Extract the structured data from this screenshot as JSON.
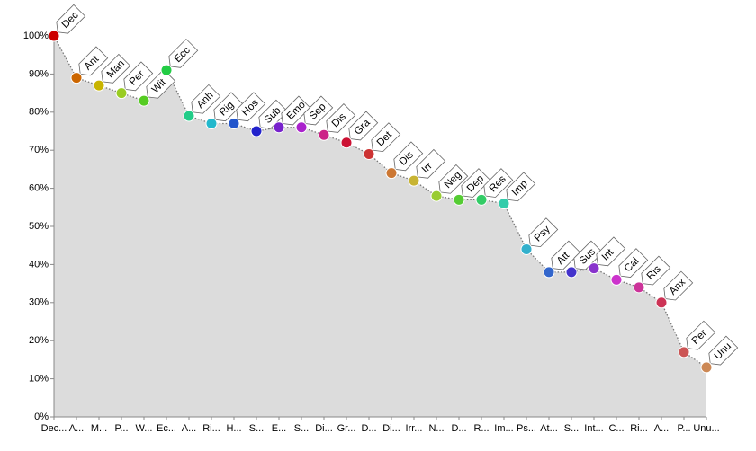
{
  "chart_data": {
    "type": "area",
    "categories": [
      "Dec...",
      "A...",
      "M...",
      "P...",
      "W...",
      "Ec...",
      "A...",
      "Ri...",
      "H...",
      "S...",
      "E...",
      "S...",
      "Di...",
      "Gr...",
      "D...",
      "Di...",
      "Irr...",
      "N...",
      "D...",
      "R...",
      "Im...",
      "Ps...",
      "At...",
      "S...",
      "Int...",
      "C...",
      "Ri...",
      "A...",
      "P...",
      "Unu..."
    ],
    "point_labels": [
      "Dec",
      "Ant",
      "Man",
      "Per",
      "Wit",
      "Ecc",
      "Anh",
      "Rig",
      "Hos",
      "Sub",
      "Emo",
      "Sep",
      "Dis",
      "Gra",
      "Det",
      "Dis",
      "Irr",
      "Neg",
      "Dep",
      "Res",
      "Imp",
      "Psy",
      "Att",
      "Sus",
      "Int",
      "Cal",
      "Ris",
      "Anx",
      "Per",
      "Unu"
    ],
    "values": [
      100,
      89,
      87,
      85,
      83,
      91,
      79,
      77,
      77,
      75,
      76,
      76,
      74,
      72,
      69,
      64,
      62,
      58,
      57,
      57,
      56,
      44,
      38,
      38,
      39,
      36,
      34,
      30,
      17,
      13
    ],
    "colors": [
      "#cc0000",
      "#cc6600",
      "#c8b400",
      "#99cc22",
      "#55cc22",
      "#22cc44",
      "#22cc88",
      "#22b8cc",
      "#2255cc",
      "#2222cc",
      "#7722cc",
      "#aa22cc",
      "#cc2288",
      "#cc1133",
      "#cc3333",
      "#cc7733",
      "#c8b433",
      "#99cc33",
      "#55cc33",
      "#33cc66",
      "#33ccaa",
      "#33b0cc",
      "#3366cc",
      "#4433cc",
      "#8833cc",
      "#cc33cc",
      "#cc3399",
      "#cc3355",
      "#cc5555",
      "#cc8855"
    ],
    "area_color": "#dcdcdc",
    "ylim": [
      0,
      100
    ],
    "yticks": [
      {
        "value": 0,
        "label": "0%"
      },
      {
        "value": 10,
        "label": "10%"
      },
      {
        "value": 20,
        "label": "20%"
      },
      {
        "value": 30,
        "label": "30%"
      },
      {
        "value": 40,
        "label": "40%"
      },
      {
        "value": 50,
        "label": "50%"
      },
      {
        "value": 60,
        "label": "60%"
      },
      {
        "value": 70,
        "label": "70%"
      },
      {
        "value": 80,
        "label": "80%"
      },
      {
        "value": 90,
        "label": "90%"
      },
      {
        "value": 100,
        "label": "100%"
      }
    ]
  }
}
